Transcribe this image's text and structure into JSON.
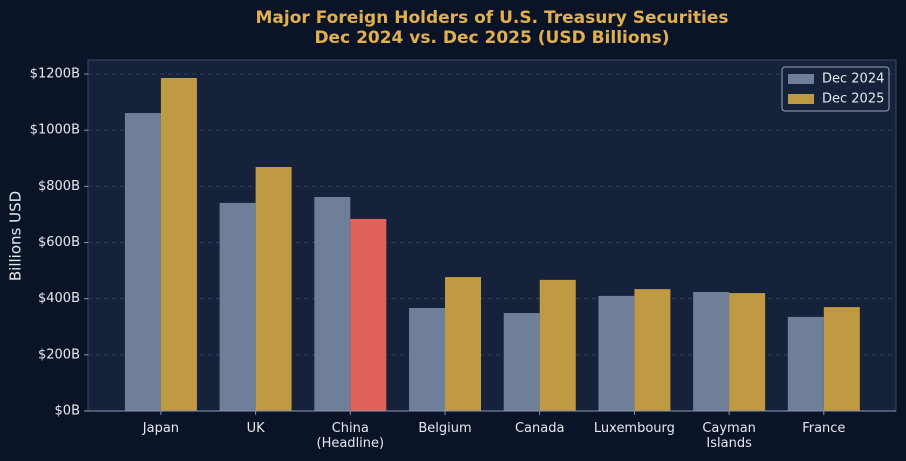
{
  "chart_data": {
    "type": "bar",
    "title": "Major Foreign Holders of U.S. Treasury Securities",
    "subtitle": "Dec 2024 vs. Dec 2025 (USD Billions)",
    "y_label": "Billions USD",
    "categories": [
      "Japan",
      "UK",
      "China\n(Headline)",
      "Belgium",
      "Canada",
      "Luxembourg",
      "Cayman\nIslands",
      "France"
    ],
    "series": [
      {
        "name": "Dec 2024",
        "color": "#6f7f99",
        "values": [
          1061,
          741,
          762,
          367,
          349,
          410,
          424,
          335
        ]
      },
      {
        "name": "Dec 2025",
        "color": "#c09a42",
        "colors": [
          "#c09a42",
          "#c09a42",
          "#e0625a",
          "#c09a42",
          "#c09a42",
          "#c09a42",
          "#c09a42",
          "#c09a42"
        ],
        "values": [
          1186,
          869,
          684,
          477,
          467,
          434,
          420,
          370
        ]
      }
    ],
    "ylim": [
      0,
      1250
    ],
    "yticks": [
      {
        "value": 0,
        "label": "$0B"
      },
      {
        "value": 200,
        "label": "$200B"
      },
      {
        "value": 400,
        "label": "$400B"
      },
      {
        "value": 600,
        "label": "$600B"
      },
      {
        "value": 800,
        "label": "$800B"
      },
      {
        "value": 1000,
        "label": "$1000B"
      },
      {
        "value": 1200,
        "label": "$1200B"
      }
    ],
    "grid": true,
    "legend": "upper right"
  }
}
